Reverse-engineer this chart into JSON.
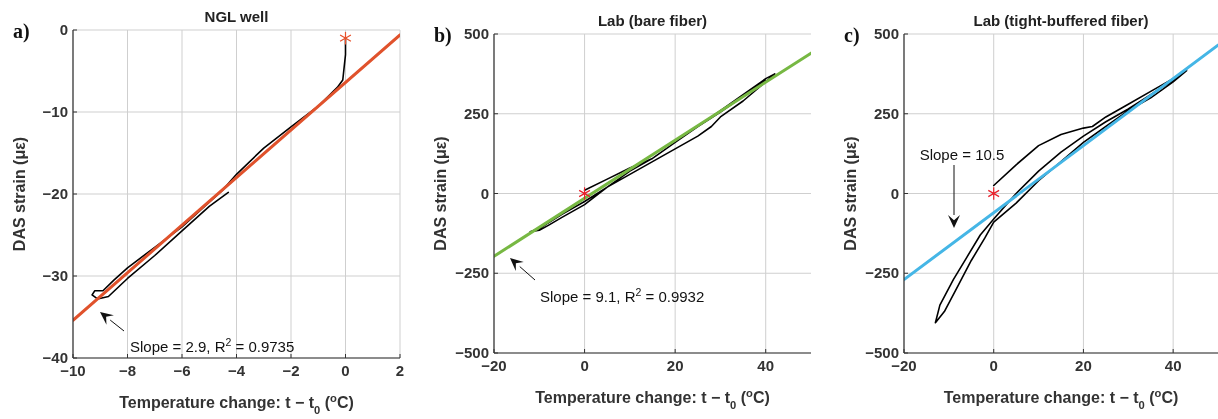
{
  "chart_data": [
    {
      "type": "line",
      "title": "NGL well",
      "xlabel": "Temperature change: t − t$_{0}$ ($^{o}$C)",
      "ylabel": "DAS strain (με)",
      "xlim": [
        -10,
        2
      ],
      "ylim": [
        -40,
        0
      ],
      "xticks": [
        -10,
        -8,
        -6,
        -4,
        -2,
        0,
        2
      ],
      "yticks": [
        -40,
        -30,
        -20,
        -10,
        0
      ],
      "grid": true,
      "annotations": [
        "a)",
        "Slope = 2.9, R$^{2}$ = 0.9735"
      ],
      "series": [
        {
          "color": "#000000",
          "x": [
            -4.3,
            -5,
            -6,
            -7,
            -8,
            -8.7,
            -9.1,
            -9.3,
            -9.2,
            -8.9,
            -8.5,
            -8,
            -7,
            -6,
            -5,
            -4.5,
            -4,
            -3,
            -2,
            -1,
            -0.3,
            -0.1,
            0,
            0
          ],
          "values": [
            -19.8,
            -21.5,
            -24.5,
            -27.5,
            -30.3,
            -32.5,
            -32.8,
            -32.3,
            -31.8,
            -31.8,
            -30.5,
            -29,
            -26.5,
            -24,
            -21,
            -19.5,
            -17.6,
            -14.4,
            -11.8,
            -9.3,
            -7,
            -6.1,
            -3,
            -1
          ]
        },
        {
          "color": "#e0522c",
          "x": [
            -10,
            2
          ],
          "values": [
            -35.4,
            -0.6
          ]
        },
        {
          "type": "scatter",
          "marker": "cross",
          "color": "#e8502a",
          "x": [
            0
          ],
          "values": [
            -1
          ]
        }
      ]
    },
    {
      "type": "line",
      "title": "Lab (bare fiber)",
      "xlabel": "Temperature change: t − t$_{0}$ ($^{o}$C)",
      "ylabel": "DAS strain (με)",
      "xlim": [
        -20,
        50
      ],
      "ylim": [
        -500,
        500
      ],
      "xticks": [
        -20,
        0,
        20,
        40
      ],
      "yticks": [
        -500,
        -250,
        0,
        250,
        500
      ],
      "grid": true,
      "annotations": [
        "b)",
        "Slope = 9.1, R$^{2}$ = 0.9932"
      ],
      "series": [
        {
          "color": "#000000",
          "x": [
            0,
            5,
            10,
            15,
            20,
            25,
            30,
            35,
            40,
            42,
            40,
            35,
            30,
            28,
            25,
            20,
            15,
            10,
            5,
            0,
            -5,
            -8,
            -10,
            -12,
            -10,
            -5,
            0,
            5,
            10,
            15,
            20,
            25,
            30,
            35,
            40
          ],
          "values": [
            10,
            45,
            80,
            110,
            160,
            210,
            260,
            310,
            360,
            375,
            350,
            290,
            240,
            210,
            180,
            140,
            100,
            60,
            20,
            -35,
            -75,
            -100,
            -115,
            -120,
            -110,
            -65,
            -25,
            20,
            70,
            110,
            160,
            210,
            255,
            305,
            355
          ]
        },
        {
          "color": "#77b843",
          "x": [
            -20,
            50
          ],
          "values": [
            -197,
            440
          ]
        },
        {
          "type": "scatter",
          "marker": "cross",
          "color": "#e8202a",
          "x": [
            0
          ],
          "values": [
            0
          ]
        }
      ]
    },
    {
      "type": "line",
      "title": "Lab (tight-buffered fiber)",
      "xlabel": "Temperature change: t − t$_{0}$ ($^{o}$C)",
      "ylabel": "DAS strain (με)",
      "xlim": [
        -20,
        50
      ],
      "ylim": [
        -500,
        500
      ],
      "xticks": [
        -20,
        0,
        20,
        40
      ],
      "yticks": [
        -500,
        -250,
        0,
        250,
        500
      ],
      "grid": true,
      "annotations": [
        "c)",
        "Slope = 10.5"
      ],
      "series": [
        {
          "color": "#000000",
          "x": [
            0,
            5,
            10,
            15,
            20,
            22,
            25,
            30,
            35,
            40,
            43,
            40,
            35,
            30,
            25,
            20,
            15,
            10,
            5,
            0,
            -3,
            -6,
            -9,
            -12,
            -13,
            -11,
            -8,
            -5,
            -2,
            0,
            5,
            10,
            15,
            20,
            25,
            30,
            35,
            40,
            43
          ],
          "values": [
            25,
            90,
            150,
            185,
            205,
            210,
            240,
            280,
            320,
            360,
            390,
            355,
            310,
            265,
            225,
            180,
            130,
            70,
            0,
            -80,
            -130,
            -200,
            -270,
            -350,
            -405,
            -370,
            -290,
            -210,
            -140,
            -90,
            -30,
            40,
            100,
            160,
            210,
            260,
            300,
            350,
            385
          ]
        },
        {
          "color": "#45b6e6",
          "x": [
            -20,
            50
          ],
          "values": [
            -270,
            465
          ]
        },
        {
          "type": "scatter",
          "marker": "cross",
          "color": "#e8202a",
          "x": [
            0
          ],
          "values": [
            0
          ]
        }
      ]
    }
  ]
}
